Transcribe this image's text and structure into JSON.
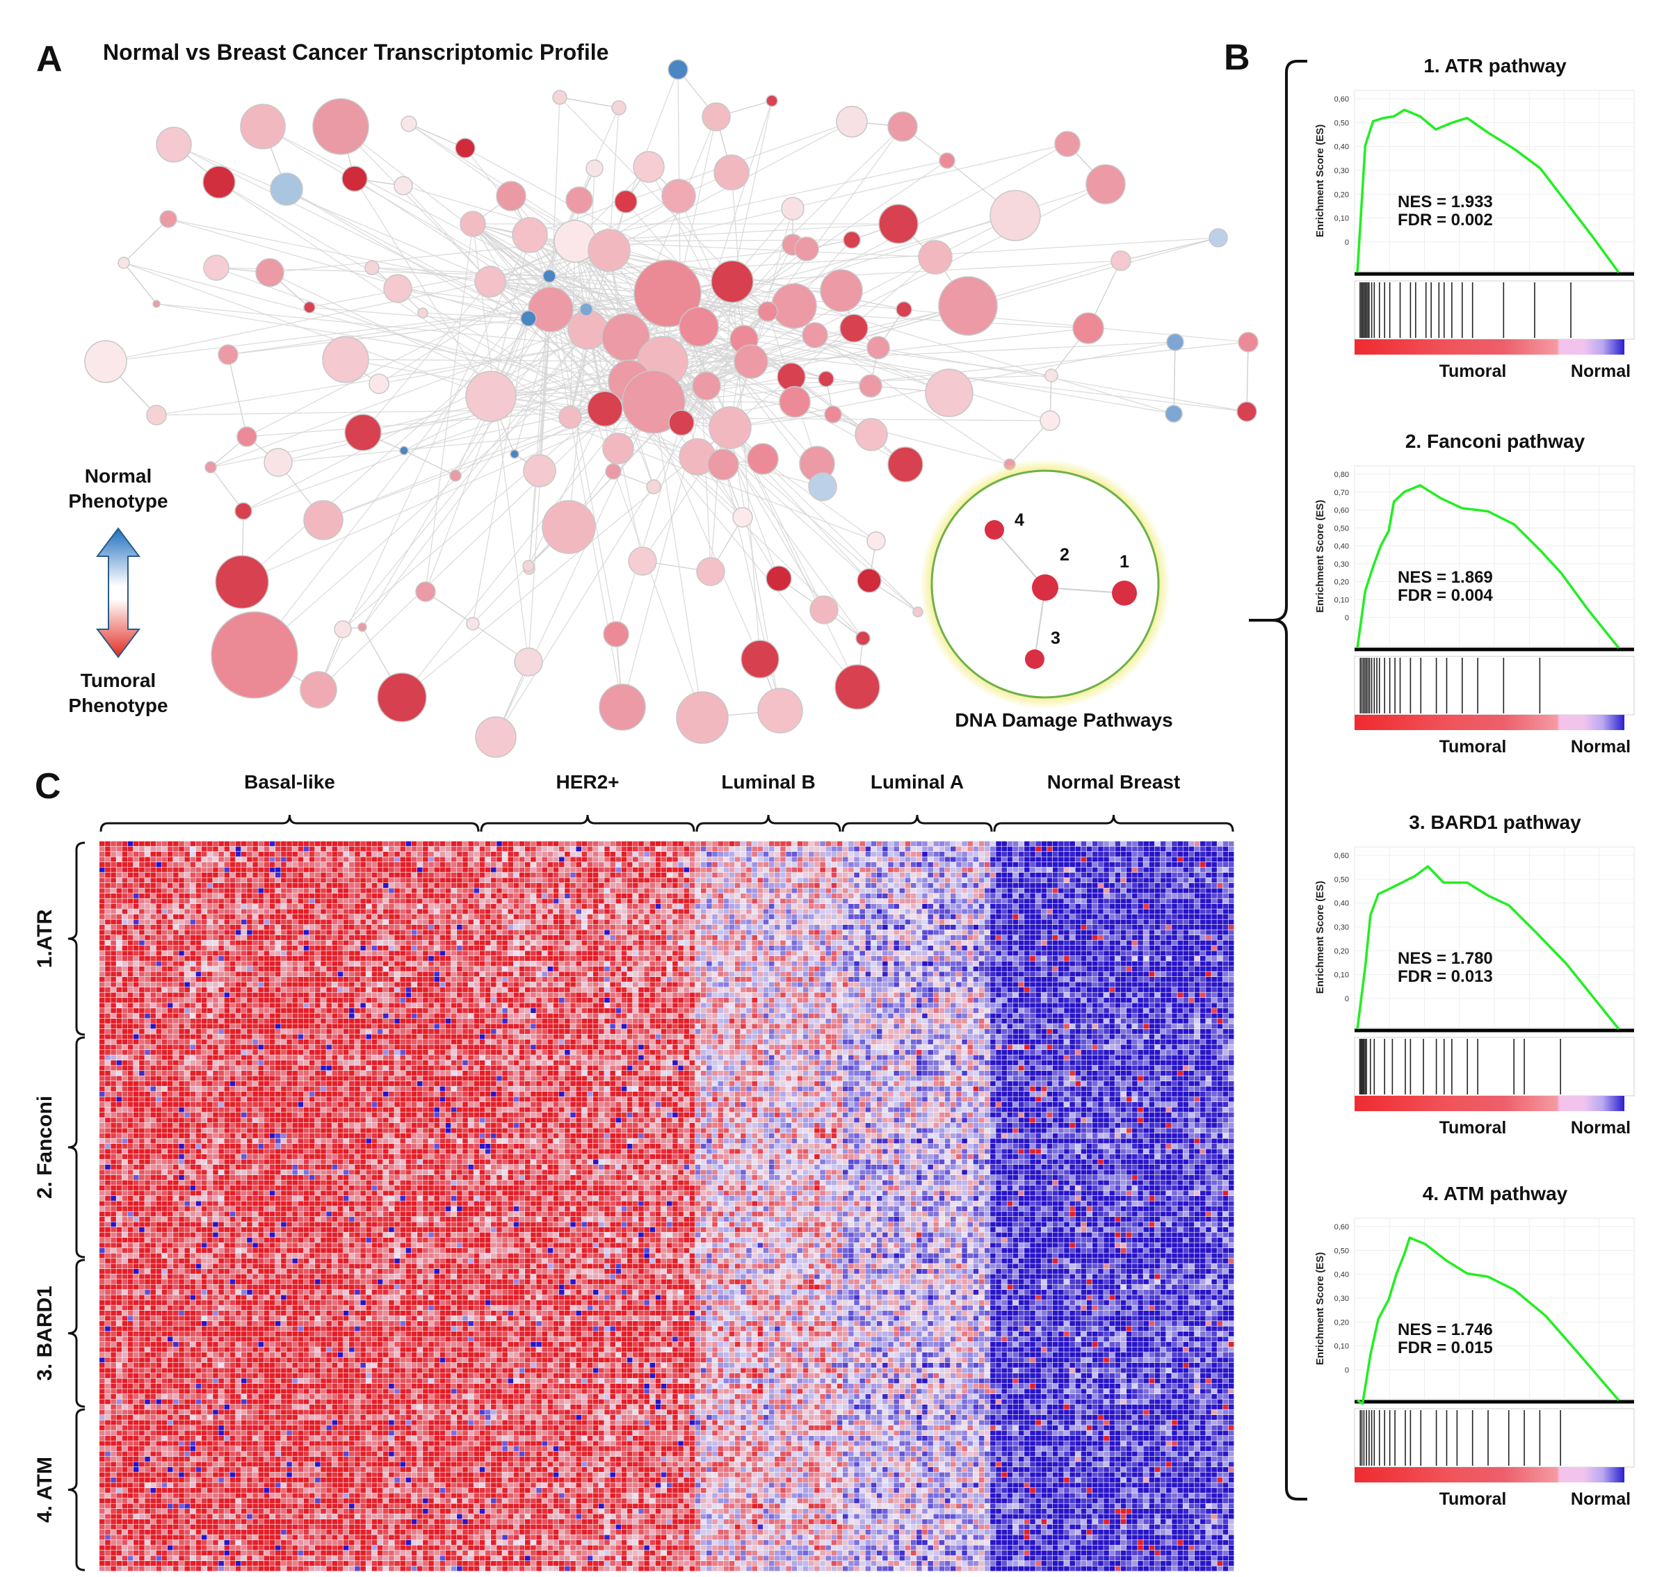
{
  "panels": {
    "A": {
      "letter": "A",
      "title": "Normal vs Breast Cancer Transcriptomic Profile",
      "legend": {
        "top_line1": "Normal",
        "top_line2": "Phenotype",
        "bottom_line1": "Tumoral",
        "bottom_line2": "Phenotype"
      },
      "inset": {
        "caption": "DNA Damage Pathways",
        "node_labels": [
          "1",
          "2",
          "3",
          "4"
        ]
      }
    },
    "B": {
      "letter": "B",
      "y_axis_label": "Enrichment Score (ES)",
      "y_ticks": [
        "0,60",
        "0,50",
        "0,40",
        "0,30",
        "0,20",
        "0,10",
        "0"
      ],
      "fanconi_y_ticks": [
        "0,80",
        "0,70",
        "0,60",
        "0,50",
        "0,40",
        "0,30",
        "0,20",
        "0,10",
        "0"
      ],
      "bar_label_left": "Tumoral",
      "bar_label_right": "Normal",
      "plots": [
        {
          "title": "1. ATR pathway",
          "nes_text": "NES = 1.933",
          "fdr_text": "FDR = 0.002",
          "nes": 1.933,
          "fdr": 0.002
        },
        {
          "title": "2. Fanconi pathway",
          "nes_text": "NES = 1.869",
          "fdr_text": "FDR = 0.004",
          "nes": 1.869,
          "fdr": 0.004
        },
        {
          "title": "3. BARD1 pathway",
          "nes_text": "NES = 1.780",
          "fdr_text": "FDR = 0.013",
          "nes": 1.78,
          "fdr": 0.013
        },
        {
          "title": "4. ATM pathway",
          "nes_text": "NES = 1.746",
          "fdr_text": "FDR = 0.015",
          "nes": 1.746,
          "fdr": 0.015
        }
      ]
    },
    "C": {
      "letter": "C",
      "column_groups": [
        "Basal-like",
        "HER2+",
        "Luminal B",
        "Luminal A",
        "Normal Breast"
      ],
      "row_groups": [
        "1.ATR",
        "2. Fanconi",
        "3. BARD1",
        "4. ATM"
      ]
    }
  },
  "colors": {
    "tumoral_red": "#d9303e",
    "normal_blue": "#2a1fc4",
    "es_curve": "#22ee22",
    "inset_ring": "#f3ee86"
  }
}
